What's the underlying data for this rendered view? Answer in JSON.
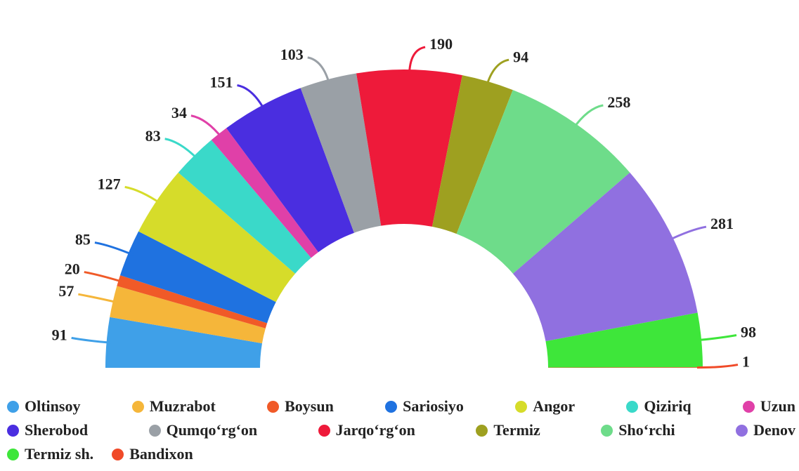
{
  "chart_data": {
    "type": "semi-donut",
    "categories": [
      "Oltinsoy",
      "Muzrabot",
      "Boysun",
      "Sariosiyo",
      "Angor",
      "Qiziriq",
      "Uzun",
      "Sherobod",
      "Qumqo‘rg‘on",
      "Jarqo‘rg‘on",
      "Termiz",
      "Sho‘rchi",
      "Denov",
      "Termiz sh.",
      "Bandixon"
    ],
    "values": [
      91,
      57,
      20,
      85,
      127,
      83,
      34,
      151,
      103,
      190,
      94,
      258,
      281,
      98,
      1
    ],
    "colors": [
      "#3fa0e8",
      "#f5b63a",
      "#f05a28",
      "#1f72e0",
      "#d6dc2a",
      "#3ad9c9",
      "#e040a8",
      "#4a2ee0",
      "#9aa0a6",
      "#ee1a3a",
      "#9ea020",
      "#6edc8a",
      "#9070e0",
      "#3ee63a",
      "#f04a28"
    ],
    "legend": "bottom"
  }
}
